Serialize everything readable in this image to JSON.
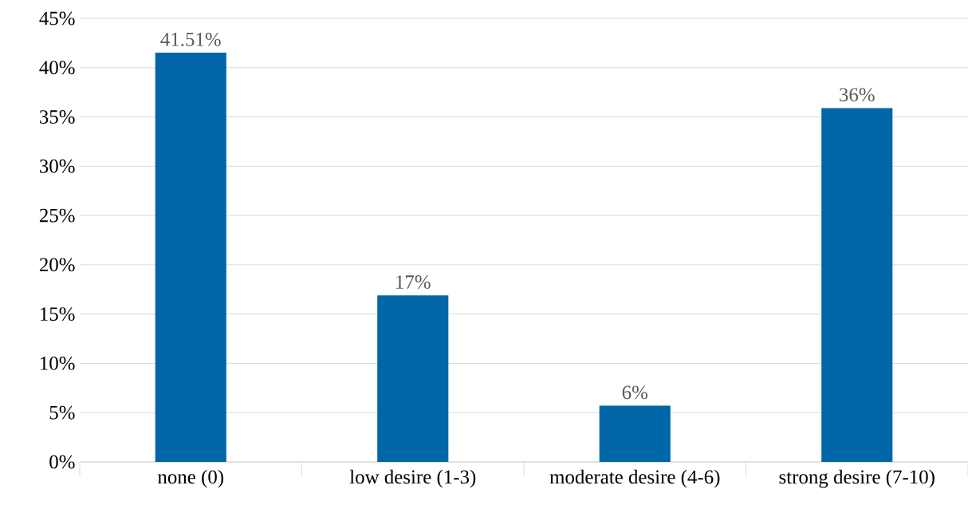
{
  "chart_data": {
    "type": "bar",
    "categories": [
      "none (0)",
      "low desire (1-3)",
      "moderate desire (4-6)",
      "strong desire (7-10)"
    ],
    "values": [
      41.51,
      16.9,
      5.7,
      35.9
    ],
    "value_labels": [
      "41.51%",
      "17%",
      "6%",
      "36%"
    ],
    "color": "#0066a8",
    "ylim": [
      0,
      45
    ],
    "yticks": [
      {
        "value": 0,
        "label": "0%"
      },
      {
        "value": 5,
        "label": "5%"
      },
      {
        "value": 10,
        "label": "10%"
      },
      {
        "value": 15,
        "label": "15%"
      },
      {
        "value": 20,
        "label": "20%"
      },
      {
        "value": 25,
        "label": "25%"
      },
      {
        "value": 30,
        "label": "30%"
      },
      {
        "value": 35,
        "label": "35%"
      },
      {
        "value": 40,
        "label": "40%"
      },
      {
        "value": 45,
        "label": "45%"
      }
    ],
    "grid": "y"
  }
}
